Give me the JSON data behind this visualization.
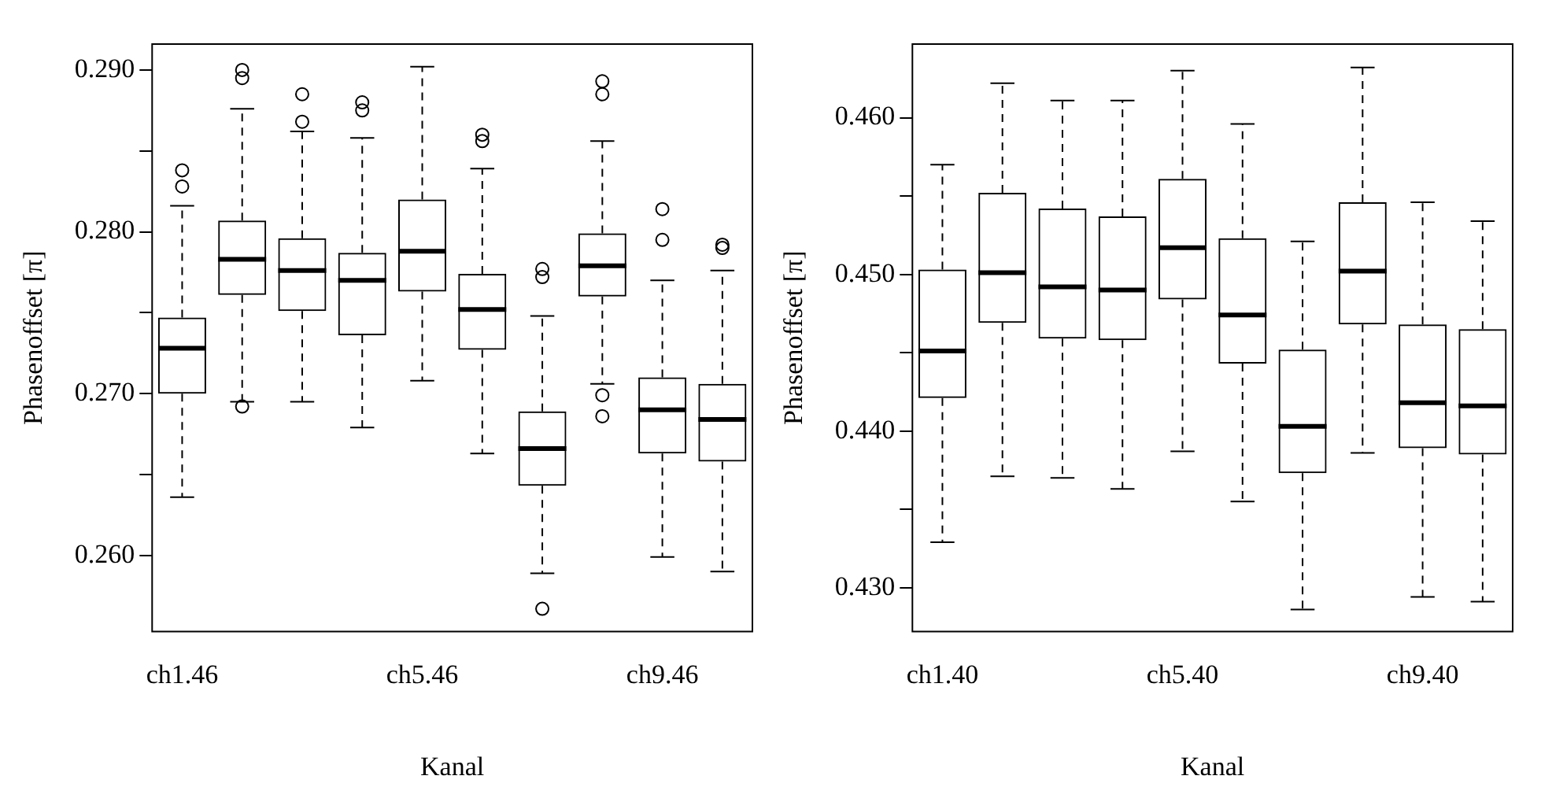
{
  "chart_data": [
    {
      "type": "box",
      "xlabel": "Kanal",
      "ylabel": "Phasenoffset [π]",
      "categories": [
        "ch1.46",
        null,
        null,
        null,
        "ch5.46",
        null,
        null,
        null,
        "ch9.46",
        null
      ],
      "boxes": [
        {
          "low": 0.2636,
          "q1": 0.27,
          "median": 0.2728,
          "q3": 0.2747,
          "high": 0.2816,
          "outliers": [
            0.2838,
            0.2828
          ]
        },
        {
          "low": 0.2695,
          "q1": 0.2761,
          "median": 0.2783,
          "q3": 0.2807,
          "high": 0.2876,
          "outliers": [
            0.29,
            0.2895,
            0.2692
          ]
        },
        {
          "low": 0.2695,
          "q1": 0.2751,
          "median": 0.2776,
          "q3": 0.2796,
          "high": 0.2862,
          "outliers": [
            0.2885,
            0.2868
          ]
        },
        {
          "low": 0.2679,
          "q1": 0.2736,
          "median": 0.277,
          "q3": 0.2787,
          "high": 0.2858,
          "outliers": [
            0.288,
            0.2875
          ]
        },
        {
          "low": 0.2708,
          "q1": 0.2763,
          "median": 0.2788,
          "q3": 0.282,
          "high": 0.2902
        },
        {
          "low": 0.2663,
          "q1": 0.2727,
          "median": 0.2752,
          "q3": 0.2774,
          "high": 0.2839,
          "outliers": [
            0.286,
            0.2856
          ]
        },
        {
          "low": 0.2589,
          "q1": 0.2643,
          "median": 0.2666,
          "q3": 0.2689,
          "high": 0.2748,
          "outliers": [
            0.2777,
            0.2772,
            0.2567
          ]
        },
        {
          "low": 0.2706,
          "q1": 0.276,
          "median": 0.2779,
          "q3": 0.2799,
          "high": 0.2856,
          "outliers": [
            0.2893,
            0.2885,
            0.2699,
            0.2686
          ]
        },
        {
          "low": 0.2599,
          "q1": 0.2663,
          "median": 0.269,
          "q3": 0.271,
          "high": 0.277,
          "outliers": [
            0.2814,
            0.2795
          ]
        },
        {
          "low": 0.259,
          "q1": 0.2658,
          "median": 0.2684,
          "q3": 0.2706,
          "high": 0.2776,
          "outliers": [
            0.2792,
            0.279
          ]
        }
      ],
      "ylim": [
        0.2553,
        0.2916
      ],
      "yticks": [
        {
          "value": 0.26,
          "label": "0.260"
        },
        {
          "value": 0.265,
          "label": null
        },
        {
          "value": 0.27,
          "label": "0.270"
        },
        {
          "value": 0.275,
          "label": null
        },
        {
          "value": 0.28,
          "label": "0.280"
        },
        {
          "value": 0.285,
          "label": null
        },
        {
          "value": 0.29,
          "label": "0.290"
        }
      ]
    },
    {
      "type": "box",
      "xlabel": "Kanal",
      "ylabel": "Phasenoffset [π]",
      "categories": [
        "ch1.40",
        null,
        null,
        null,
        "ch5.40",
        null,
        null,
        null,
        "ch9.40",
        null
      ],
      "boxes": [
        {
          "low": 0.4329,
          "q1": 0.4421,
          "median": 0.4451,
          "q3": 0.4503,
          "high": 0.457
        },
        {
          "low": 0.4371,
          "q1": 0.4469,
          "median": 0.4501,
          "q3": 0.4552,
          "high": 0.4622
        },
        {
          "low": 0.437,
          "q1": 0.4459,
          "median": 0.4492,
          "q3": 0.4542,
          "high": 0.4611
        },
        {
          "low": 0.4363,
          "q1": 0.4458,
          "median": 0.449,
          "q3": 0.4537,
          "high": 0.4611
        },
        {
          "low": 0.4387,
          "q1": 0.4484,
          "median": 0.4517,
          "q3": 0.4561,
          "high": 0.463
        },
        {
          "low": 0.4355,
          "q1": 0.4443,
          "median": 0.4474,
          "q3": 0.4523,
          "high": 0.4596
        },
        {
          "low": 0.4286,
          "q1": 0.4373,
          "median": 0.4403,
          "q3": 0.4452,
          "high": 0.4521
        },
        {
          "low": 0.4386,
          "q1": 0.4468,
          "median": 0.4502,
          "q3": 0.4546,
          "high": 0.4632
        },
        {
          "low": 0.4294,
          "q1": 0.4389,
          "median": 0.4418,
          "q3": 0.4468,
          "high": 0.4546
        },
        {
          "low": 0.4291,
          "q1": 0.4385,
          "median": 0.4416,
          "q3": 0.4465,
          "high": 0.4534
        }
      ],
      "ylim": [
        0.4272,
        0.4647
      ],
      "yticks": [
        {
          "value": 0.43,
          "label": "0.430"
        },
        {
          "value": 0.435,
          "label": null
        },
        {
          "value": 0.44,
          "label": "0.440"
        },
        {
          "value": 0.445,
          "label": null
        },
        {
          "value": 0.45,
          "label": "0.450"
        },
        {
          "value": 0.455,
          "label": null
        },
        {
          "value": 0.46,
          "label": "0.460"
        }
      ]
    }
  ]
}
